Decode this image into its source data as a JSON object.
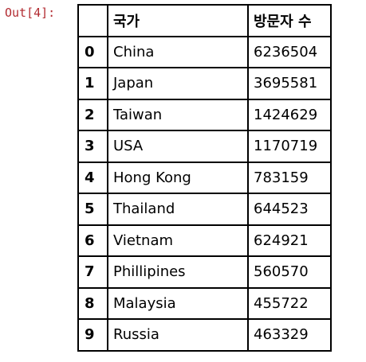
{
  "cell": {
    "output_prompt": "Out[4]:"
  },
  "table": {
    "index_header": "",
    "columns": [
      "국가",
      "방문자 수"
    ],
    "rows": [
      {
        "index": "0",
        "country": "China",
        "visitors": "6236504"
      },
      {
        "index": "1",
        "country": "Japan",
        "visitors": "3695581"
      },
      {
        "index": "2",
        "country": "Taiwan",
        "visitors": "1424629"
      },
      {
        "index": "3",
        "country": "USA",
        "visitors": "1170719"
      },
      {
        "index": "4",
        "country": "Hong Kong",
        "visitors": "783159"
      },
      {
        "index": "5",
        "country": "Thailand",
        "visitors": "644523"
      },
      {
        "index": "6",
        "country": "Vietnam",
        "visitors": "624921"
      },
      {
        "index": "7",
        "country": "Phillipines",
        "visitors": "560570"
      },
      {
        "index": "8",
        "country": "Malaysia",
        "visitors": "455722"
      },
      {
        "index": "9",
        "country": "Russia",
        "visitors": "463329"
      }
    ]
  }
}
